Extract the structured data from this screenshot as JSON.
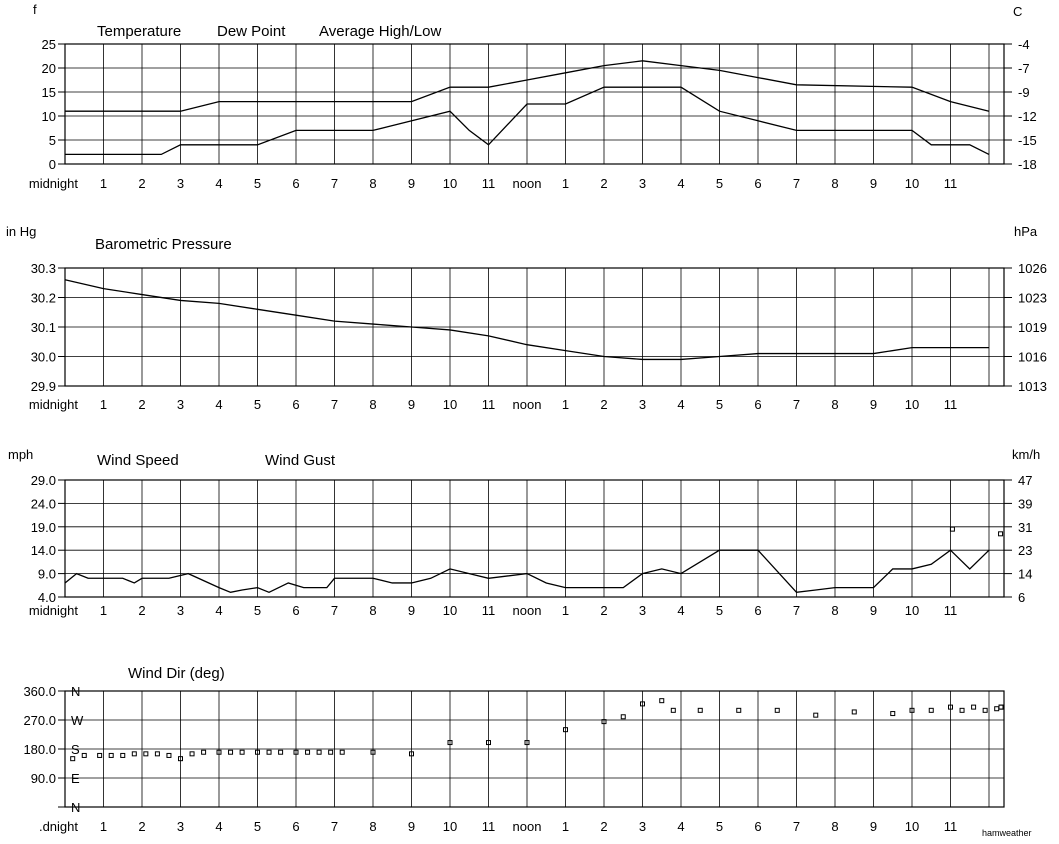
{
  "x_tick_labels": [
    "midnight",
    "1",
    "2",
    "3",
    "4",
    "5",
    "6",
    "7",
    "8",
    "9",
    "10",
    "11",
    "noon",
    "1",
    "2",
    "3",
    "4",
    "5",
    "6",
    "7",
    "8",
    "9",
    "10",
    "11"
  ],
  "chart_data": [
    {
      "type": "line",
      "title": "",
      "legend": [
        "Temperature",
        "Dew Point",
        "Average High/Low"
      ],
      "left_unit": "f",
      "right_unit": "C",
      "ylim": [
        0,
        25
      ],
      "y_ticks": [
        "0",
        "5",
        "10",
        "15",
        "20",
        "25"
      ],
      "right_ticks": [
        "-18",
        "-15",
        "-12",
        "-9",
        "-7",
        "-4"
      ],
      "x_hours": [
        0,
        1,
        2,
        3,
        4,
        5,
        6,
        7,
        8,
        9,
        10,
        11,
        12,
        13,
        14,
        15,
        16,
        17,
        18,
        19,
        20,
        21,
        22,
        23,
        24
      ],
      "series": [
        {
          "name": "Temperature",
          "color": "#000000",
          "points": [
            [
              0,
              11
            ],
            [
              3,
              11
            ],
            [
              4,
              13
            ],
            [
              9,
              13
            ],
            [
              10,
              16
            ],
            [
              11,
              16
            ],
            [
              12,
              17.5
            ],
            [
              13,
              19
            ],
            [
              14,
              20.5
            ],
            [
              15,
              21.5
            ],
            [
              16,
              20.5
            ],
            [
              17,
              19.5
            ],
            [
              18,
              18
            ],
            [
              19,
              16.5
            ],
            [
              22,
              16
            ],
            [
              23,
              13
            ],
            [
              24,
              11
            ]
          ]
        },
        {
          "name": "Dew Point",
          "color": "#000000",
          "points": [
            [
              0,
              2
            ],
            [
              2.5,
              2
            ],
            [
              3,
              4
            ],
            [
              5,
              4
            ],
            [
              6,
              7
            ],
            [
              8,
              7
            ],
            [
              10,
              11
            ],
            [
              10.5,
              7
            ],
            [
              11,
              4
            ],
            [
              12,
              12.5
            ],
            [
              13,
              12.5
            ],
            [
              14,
              16
            ],
            [
              16,
              16
            ],
            [
              17,
              11
            ],
            [
              18,
              9
            ],
            [
              19,
              7
            ],
            [
              22,
              7
            ],
            [
              22.5,
              4
            ],
            [
              23.5,
              4
            ],
            [
              24,
              2
            ]
          ]
        }
      ]
    },
    {
      "type": "line",
      "title": "Barometric Pressure",
      "left_unit": "in Hg",
      "right_unit": "hPa",
      "ylim": [
        29.9,
        30.3
      ],
      "y_ticks": [
        "29.9",
        "30.0",
        "30.1",
        "30.2",
        "30.3"
      ],
      "right_ticks": [
        "1013",
        "1016",
        "1019",
        "1023",
        "1026"
      ],
      "series": [
        {
          "name": "Barometric Pressure",
          "color": "#000000",
          "points": [
            [
              0,
              30.26
            ],
            [
              1,
              30.23
            ],
            [
              2,
              30.21
            ],
            [
              3,
              30.19
            ],
            [
              4,
              30.18
            ],
            [
              5,
              30.16
            ],
            [
              6,
              30.14
            ],
            [
              7,
              30.12
            ],
            [
              8,
              30.11
            ],
            [
              9,
              30.1
            ],
            [
              10,
              30.09
            ],
            [
              11,
              30.07
            ],
            [
              12,
              30.04
            ],
            [
              13,
              30.02
            ],
            [
              14,
              30.0
            ],
            [
              15,
              29.99
            ],
            [
              16,
              29.99
            ],
            [
              17,
              30.0
            ],
            [
              18,
              30.01
            ],
            [
              19,
              30.01
            ],
            [
              20,
              30.01
            ],
            [
              21,
              30.01
            ],
            [
              22,
              30.03
            ],
            [
              23,
              30.03
            ],
            [
              24,
              30.03
            ]
          ]
        }
      ]
    },
    {
      "type": "line",
      "title": "",
      "legend": [
        "Wind Speed",
        "Wind Gust"
      ],
      "left_unit": "mph",
      "right_unit": "km/h",
      "ylim": [
        4.0,
        29.0
      ],
      "y_ticks": [
        "4.0",
        "9.0",
        "14.0",
        "19.0",
        "24.0",
        "29.0"
      ],
      "right_ticks": [
        "6",
        "14",
        "23",
        "31",
        "39",
        "47"
      ],
      "series": [
        {
          "name": "Wind Speed",
          "color": "#000000",
          "points": [
            [
              0,
              7
            ],
            [
              0.3,
              9
            ],
            [
              0.6,
              8
            ],
            [
              1.5,
              8
            ],
            [
              1.8,
              7
            ],
            [
              2,
              8
            ],
            [
              2.7,
              8
            ],
            [
              3.2,
              9
            ],
            [
              4,
              6
            ],
            [
              4.3,
              5
            ],
            [
              4.6,
              5.5
            ],
            [
              5,
              6
            ],
            [
              5.3,
              5
            ],
            [
              5.8,
              7
            ],
            [
              6.2,
              6
            ],
            [
              6.8,
              6
            ],
            [
              7,
              8
            ],
            [
              8,
              8
            ],
            [
              8.5,
              7
            ],
            [
              9,
              7
            ],
            [
              9.5,
              8
            ],
            [
              10,
              10
            ],
            [
              10.5,
              9
            ],
            [
              11,
              8
            ],
            [
              11.5,
              8.5
            ],
            [
              12,
              9
            ],
            [
              12.5,
              7
            ],
            [
              13,
              6
            ],
            [
              14.5,
              6
            ],
            [
              15,
              9
            ],
            [
              15.5,
              10
            ],
            [
              16,
              9
            ],
            [
              17,
              14
            ],
            [
              17.5,
              14
            ],
            [
              18,
              14
            ],
            [
              19,
              5
            ],
            [
              19.5,
              5.5
            ],
            [
              20,
              6
            ],
            [
              21,
              6
            ],
            [
              21.5,
              10
            ],
            [
              22,
              10
            ],
            [
              22.5,
              11
            ],
            [
              23,
              14
            ],
            [
              23.5,
              10
            ],
            [
              24,
              14
            ]
          ]
        },
        {
          "name": "Wind Gust",
          "color": "#000000",
          "points": [
            [
              23.05,
              18.5
            ],
            [
              24.3,
              17.5
            ]
          ]
        }
      ]
    },
    {
      "type": "scatter",
      "title": "Wind Dir (deg)",
      "left_unit": "",
      "right_unit": "",
      "footer_label": "hamweather",
      "ylim": [
        0,
        360
      ],
      "y_ticks": [
        "",
        "90.0",
        "180.0",
        "270.0",
        "360.0"
      ],
      "compass": [
        "N",
        "E",
        "S",
        "W",
        "N"
      ],
      "series": [
        {
          "name": "Wind Dir (deg)",
          "color": "#000000",
          "points": [
            [
              0.2,
              150
            ],
            [
              0.5,
              160
            ],
            [
              0.9,
              160
            ],
            [
              1.2,
              160
            ],
            [
              1.5,
              160
            ],
            [
              1.8,
              165
            ],
            [
              2.1,
              165
            ],
            [
              2.4,
              165
            ],
            [
              2.7,
              160
            ],
            [
              3.0,
              150
            ],
            [
              3.3,
              165
            ],
            [
              3.6,
              170
            ],
            [
              4.0,
              170
            ],
            [
              4.3,
              170
            ],
            [
              4.6,
              170
            ],
            [
              5.0,
              170
            ],
            [
              5.3,
              170
            ],
            [
              5.6,
              170
            ],
            [
              6.0,
              170
            ],
            [
              6.3,
              170
            ],
            [
              6.6,
              170
            ],
            [
              6.9,
              170
            ],
            [
              7.2,
              170
            ],
            [
              8.0,
              170
            ],
            [
              9.0,
              165
            ],
            [
              10.0,
              200
            ],
            [
              11.0,
              200
            ],
            [
              12.0,
              200
            ],
            [
              13.0,
              240
            ],
            [
              14.0,
              265
            ],
            [
              14.5,
              280
            ],
            [
              15.0,
              320
            ],
            [
              15.5,
              330
            ],
            [
              15.8,
              300
            ],
            [
              16.5,
              300
            ],
            [
              17.5,
              300
            ],
            [
              18.5,
              300
            ],
            [
              19.5,
              285
            ],
            [
              20.5,
              295
            ],
            [
              21.5,
              290
            ],
            [
              22.0,
              300
            ],
            [
              22.5,
              300
            ],
            [
              23.0,
              310
            ],
            [
              23.3,
              300
            ],
            [
              23.6,
              310
            ],
            [
              23.9,
              300
            ],
            [
              24.2,
              305
            ],
            [
              24.5,
              310
            ],
            [
              24.8,
              310
            ]
          ]
        }
      ]
    }
  ]
}
